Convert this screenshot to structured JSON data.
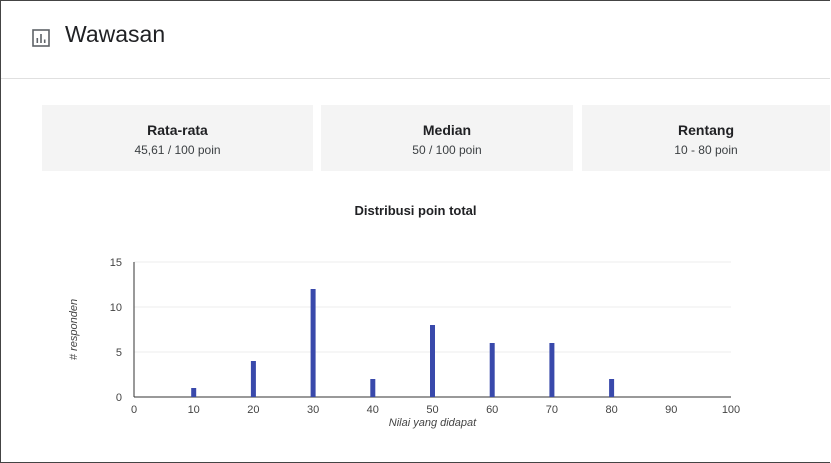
{
  "header": {
    "title": "Wawasan",
    "icon": "bar-chart-icon"
  },
  "stats": [
    {
      "label": "Rata-rata",
      "value": "45,61 / 100 poin"
    },
    {
      "label": "Median",
      "value": "50 / 100 poin"
    },
    {
      "label": "Rentang",
      "value": "10 - 80 poin"
    }
  ],
  "colors": {
    "bar": "#3949ab",
    "card_bg": "#f4f4f4",
    "grid": "#eeeeee"
  },
  "chart_data": {
    "type": "bar",
    "title": "Distribusi poin total",
    "xlabel": "Nilai yang didapat",
    "ylabel": "# responden",
    "x": [
      10,
      20,
      30,
      40,
      50,
      60,
      70,
      80
    ],
    "values": [
      1,
      4,
      12,
      2,
      8,
      6,
      6,
      2
    ],
    "xlim": [
      0,
      100
    ],
    "ylim": [
      0,
      15
    ],
    "xticks": [
      "0",
      "10",
      "20",
      "30",
      "40",
      "50",
      "60",
      "70",
      "80",
      "90",
      "100"
    ],
    "yticks": [
      "0",
      "5",
      "10",
      "15"
    ],
    "grid": true,
    "legend": "none"
  }
}
